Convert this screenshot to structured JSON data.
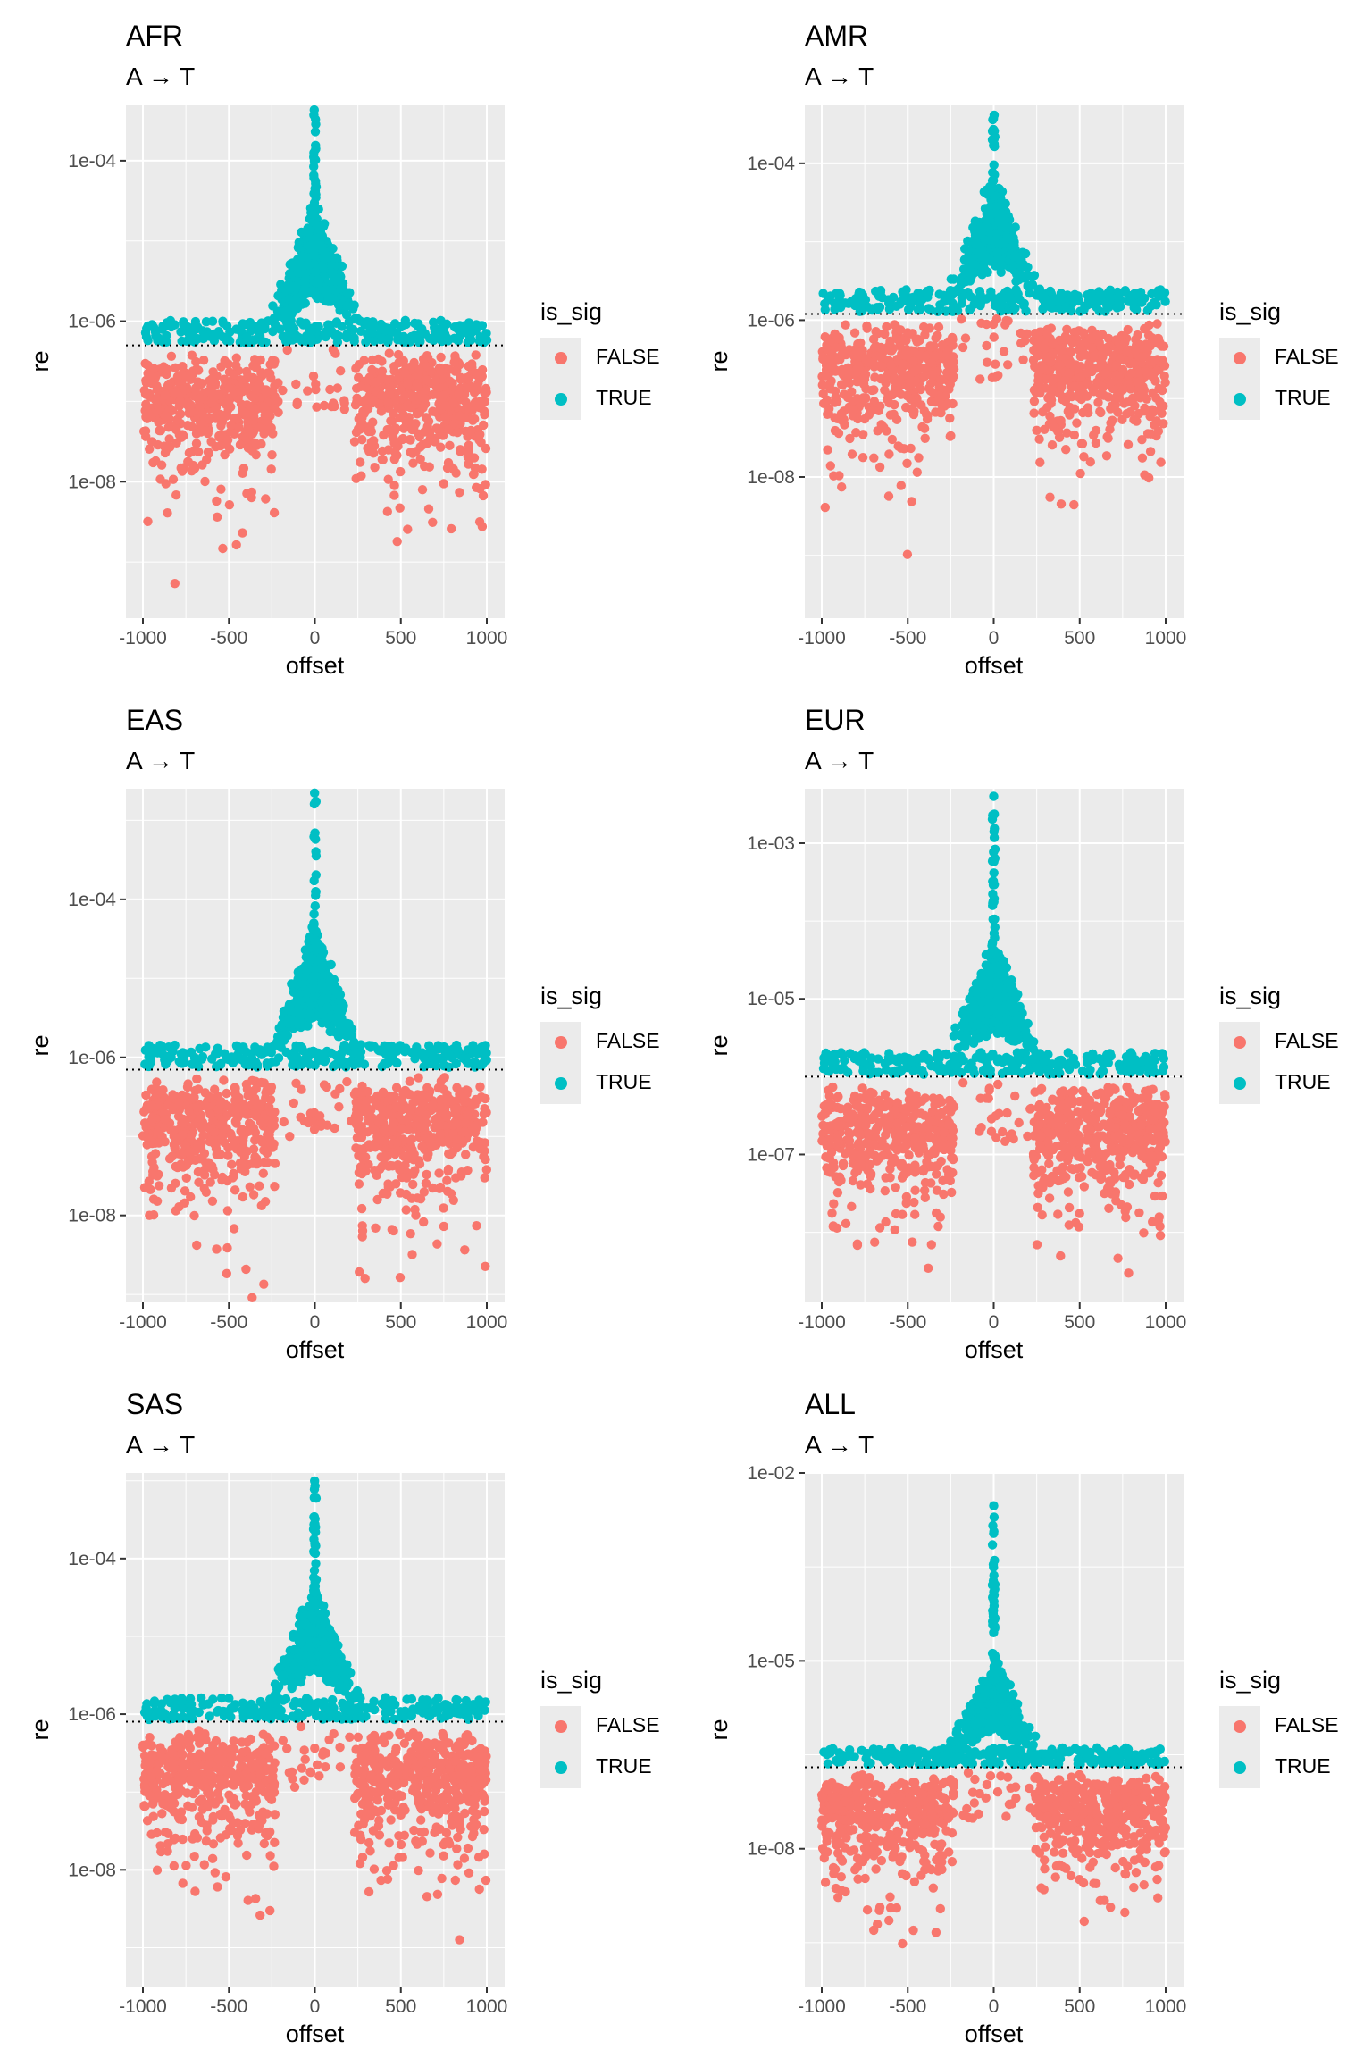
{
  "colors": {
    "false": "#F8766D",
    "true": "#00BFC4",
    "panel_bg": "#EBEBEB",
    "grid": "#FFFFFF"
  },
  "legend": {
    "title": "is_sig",
    "items": [
      "FALSE",
      "TRUE"
    ]
  },
  "chart_data": [
    {
      "type": "scatter",
      "title": "AFR",
      "subtitle": "A → T",
      "xlabel": "offset",
      "ylabel": "re",
      "xlim": [
        -1000,
        1000
      ],
      "xticks": [
        -1000,
        -500,
        0,
        500,
        1000
      ],
      "yscale": "log10",
      "ylim_log10": [
        -9.7,
        -3.3
      ],
      "yticks": [
        {
          "log": -4,
          "label": "1e-04"
        },
        {
          "log": -6,
          "label": "1e-06"
        },
        {
          "log": -8,
          "label": "1e-08"
        }
      ],
      "threshold": 5e-07,
      "peak": 0.0025,
      "series": [
        {
          "name": "FALSE",
          "summary": "log10(re) ≈ -7.8 to -6.3 for |offset| > 220; sparse outliers down to ~1.5e-9"
        },
        {
          "name": "TRUE",
          "summary": "|offset| < 250 spike peaking near 2.5e-3 at offset 0; band just above 5e-7 across all offsets"
        }
      ]
    },
    {
      "type": "scatter",
      "title": "AMR",
      "subtitle": "A → T",
      "xlabel": "offset",
      "ylabel": "re",
      "xlim": [
        -1000,
        1000
      ],
      "xticks": [
        -1000,
        -500,
        0,
        500,
        1000
      ],
      "yscale": "log10",
      "ylim_log10": [
        -9.8,
        -3.25
      ],
      "yticks": [
        {
          "log": -4,
          "label": "1e-04"
        },
        {
          "log": -6,
          "label": "1e-06"
        },
        {
          "log": -8,
          "label": "1e-08"
        }
      ],
      "threshold": 1.2e-06,
      "peak": 0.0025,
      "series": [
        {
          "name": "FALSE",
          "summary": "log10(re) ≈ -7.3 to -5.9; outliers down to ~8e-10"
        },
        {
          "name": "TRUE",
          "summary": "spike at offset 0 up to ~2.5e-3; band above 1.2e-6"
        }
      ]
    },
    {
      "type": "scatter",
      "title": "EAS",
      "subtitle": "A → T",
      "xlabel": "offset",
      "ylabel": "re",
      "xlim": [
        -1000,
        1000
      ],
      "xticks": [
        -1000,
        -500,
        0,
        500,
        1000
      ],
      "yscale": "log10",
      "ylim_log10": [
        -9.1,
        -2.6
      ],
      "yticks": [
        {
          "log": -4,
          "label": "1e-04"
        },
        {
          "log": -6,
          "label": "1e-06"
        },
        {
          "log": -8,
          "label": "1e-08"
        }
      ],
      "threshold": 7e-07,
      "peak": 0.005,
      "series": [
        {
          "name": "FALSE",
          "summary": "log10(re) ≈ -7.5 to -6.2; outliers down to ~1.3e-9"
        },
        {
          "name": "TRUE",
          "summary": "spike at offset 0 up to ~5e-3; band just above 7e-7"
        }
      ]
    },
    {
      "type": "scatter",
      "title": "EUR",
      "subtitle": "A → T",
      "xlabel": "offset",
      "ylabel": "re",
      "xlim": [
        -1000,
        1000
      ],
      "xticks": [
        -1000,
        -500,
        0,
        500,
        1000
      ],
      "yscale": "log10",
      "ylim_log10": [
        -8.9,
        -2.3
      ],
      "yticks": [
        {
          "log": -3,
          "label": "1e-03"
        },
        {
          "log": -5,
          "label": "1e-05"
        },
        {
          "log": -7,
          "label": "1e-07"
        }
      ],
      "threshold": 1e-06,
      "peak": 0.004,
      "series": [
        {
          "name": "FALSE",
          "summary": "log10(re) ≈ -7.4 to -6.1; outliers down to ~1.5e-8"
        },
        {
          "name": "TRUE",
          "summary": "spike at offset 0 up to ~4e-3; band above 1e-6"
        }
      ]
    },
    {
      "type": "scatter",
      "title": "SAS",
      "subtitle": "A → T",
      "xlabel": "offset",
      "ylabel": "re",
      "xlim": [
        -1000,
        1000
      ],
      "xticks": [
        -1000,
        -500,
        0,
        500,
        1000
      ],
      "yscale": "log10",
      "ylim_log10": [
        -9.5,
        -2.9
      ],
      "yticks": [
        {
          "log": -4,
          "label": "1e-04"
        },
        {
          "log": -6,
          "label": "1e-06"
        },
        {
          "log": -8,
          "label": "1e-08"
        }
      ],
      "threshold": 8e-07,
      "peak": 0.0035,
      "series": [
        {
          "name": "FALSE",
          "summary": "log10(re) ≈ -7.5 to -6.2; outliers down to ~1e-9"
        },
        {
          "name": "TRUE",
          "summary": "spike at offset 0 up to ~3.5e-3; band above 8e-7"
        }
      ]
    },
    {
      "type": "scatter",
      "title": "ALL",
      "subtitle": "A → T",
      "xlabel": "offset",
      "ylabel": "re",
      "xlim": [
        -1000,
        1000
      ],
      "xticks": [
        -1000,
        -500,
        0,
        500,
        1000
      ],
      "yscale": "log10",
      "ylim_log10": [
        -10.2,
        -2.0
      ],
      "yticks": [
        {
          "log": -2,
          "label": "1e-02"
        },
        {
          "log": -5,
          "label": "1e-05"
        },
        {
          "log": -8,
          "label": "1e-08"
        }
      ],
      "threshold": 2e-07,
      "peak": 0.003,
      "series": [
        {
          "name": "FALSE",
          "summary": "log10(re) ≈ -8.2 to -6.8; outliers down to ~3e-10"
        },
        {
          "name": "TRUE",
          "summary": "spike at offset 0 up to ~3e-3; band above 2e-7"
        }
      ]
    }
  ]
}
